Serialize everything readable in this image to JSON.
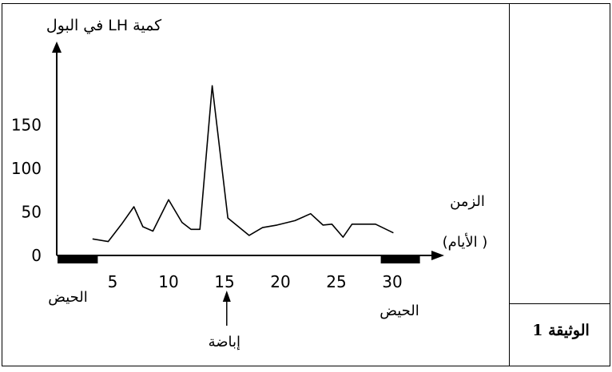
{
  "document": {
    "label": "الوثيقة 1"
  },
  "chart_data": {
    "type": "line",
    "ylabel": "كمية LH في البول",
    "xlabel_line1": "الزمن",
    "xlabel_line2": "( الأيام)",
    "x_ticks": [
      5,
      10,
      15,
      20,
      25,
      30
    ],
    "y_ticks": [
      0,
      50,
      100,
      150
    ],
    "xlim": [
      0,
      33
    ],
    "ylim": [
      0,
      200
    ],
    "series": [
      {
        "x": [
          3.2,
          4.6,
          5.8,
          6.9,
          7.7,
          8.6,
          10,
          11.2,
          12,
          12.8,
          13.9,
          15.3,
          17.2,
          18.4,
          19.7,
          21.3,
          22.7,
          23.8,
          24.6,
          25.6,
          26.4,
          28.5,
          30.1
        ],
        "y": [
          19,
          16,
          36,
          56,
          33,
          28,
          64,
          38,
          30,
          30,
          195,
          43,
          23,
          32,
          35,
          40,
          48,
          35,
          36,
          21,
          36,
          36,
          26
        ]
      }
    ],
    "annotations": {
      "menstruation_label": "الحيض",
      "ovulation_label": "إباضة",
      "menstruation_periods": [
        [
          0,
          3.6
        ],
        [
          28.9,
          32.4
        ]
      ],
      "ovulation_day": 15.2
    }
  }
}
